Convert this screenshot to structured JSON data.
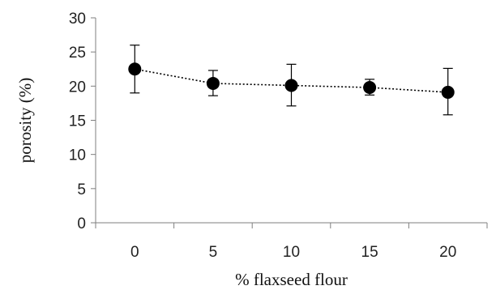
{
  "chart_data": {
    "type": "scatter",
    "title": "",
    "xlabel": "% flaxseed flour",
    "ylabel": "porosity (%)",
    "x": [
      0,
      5,
      10,
      15,
      20
    ],
    "x_tick_labels": [
      "0",
      "5",
      "10",
      "15",
      "20"
    ],
    "ylim": [
      0,
      30
    ],
    "y_ticks": [
      0,
      5,
      10,
      15,
      20,
      25,
      30
    ],
    "y_tick_labels": [
      "0",
      "5",
      "10",
      "15",
      "20",
      "25",
      "30"
    ],
    "grid": false,
    "legend": "none",
    "series": [
      {
        "values": [
          22.5,
          20.4,
          20.1,
          19.8,
          19.1
        ],
        "error_low": [
          19.0,
          18.6,
          17.1,
          18.7,
          15.8
        ],
        "error_high": [
          26.0,
          22.3,
          23.2,
          21.0,
          22.6
        ],
        "marker": "filled-circle",
        "line_style": "dotted",
        "color": "#000000"
      }
    ]
  }
}
